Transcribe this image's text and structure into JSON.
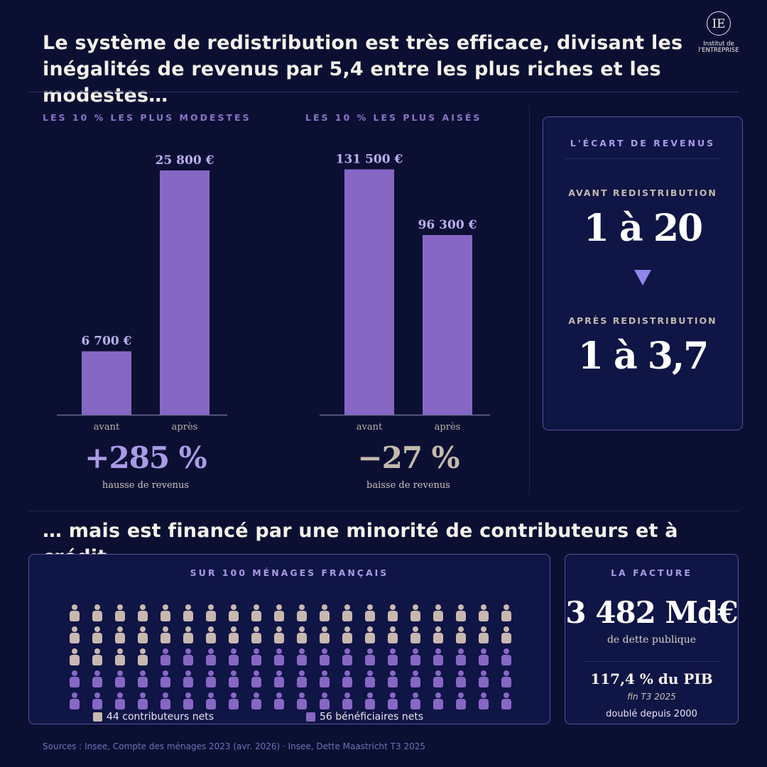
{
  "header": {
    "title": "Le système de redistribution est très efficace, divisant les inégalités de revenus par 5,4 entre les plus riches et les modestes…",
    "logo_mark": "IE",
    "logo_text_line1": "Institut de",
    "logo_text_line2": "l'ENTREPRISE"
  },
  "colors": {
    "background": "#0b1033",
    "bar": "#8767c4",
    "contributor": "#c9b8b0",
    "beneficiary": "#8767c4",
    "accent": "#a99be6"
  },
  "chart_data": [
    {
      "type": "bar",
      "title": "LES 10 % LES PLUS MODESTES",
      "categories": [
        "avant",
        "après"
      ],
      "values": [
        6700,
        25800
      ],
      "value_labels": [
        "6 700 €",
        "25 800 €"
      ],
      "ylim": [
        0,
        27000
      ],
      "summary": "+285 %",
      "summary_caption": "hausse de revenus"
    },
    {
      "type": "bar",
      "title": "LES 10 % LES PLUS AISÉS",
      "categories": [
        "avant",
        "après"
      ],
      "values": [
        131500,
        96300
      ],
      "value_labels": [
        "131 500 €",
        "96 300 €"
      ],
      "ylim": [
        0,
        137000
      ],
      "summary": "−27 %",
      "summary_caption": "baisse de revenus"
    }
  ],
  "gap_card": {
    "title": "L'ÉCART DE REVENUS",
    "before_label": "AVANT REDISTRIBUTION",
    "before_value": "1 à 20",
    "after_label": "APRÈS REDISTRIBUTION",
    "after_value": "1 à 3,7"
  },
  "second_headline": "… mais est financé par une minorité de contributeurs et à crédit.",
  "households": {
    "title": "SUR 100 MÉNAGES FRANÇAIS",
    "total": 100,
    "contributors": 44,
    "beneficiaries": 56,
    "legend_contributors": "44 contributeurs nets",
    "legend_beneficiaries": "56 bénéficiaires nets"
  },
  "facture": {
    "title": "LA FACTURE",
    "amount": "3 482 Md€",
    "amount_caption": "de dette publique",
    "pct_gdp": "117,4 % du PIB",
    "period": "fin T3 2025",
    "note": "doublé depuis 2000"
  },
  "source": "Sources : Insee, Compte des ménages 2023 (avr. 2026) · Insee, Dette Maastricht T3 2025"
}
